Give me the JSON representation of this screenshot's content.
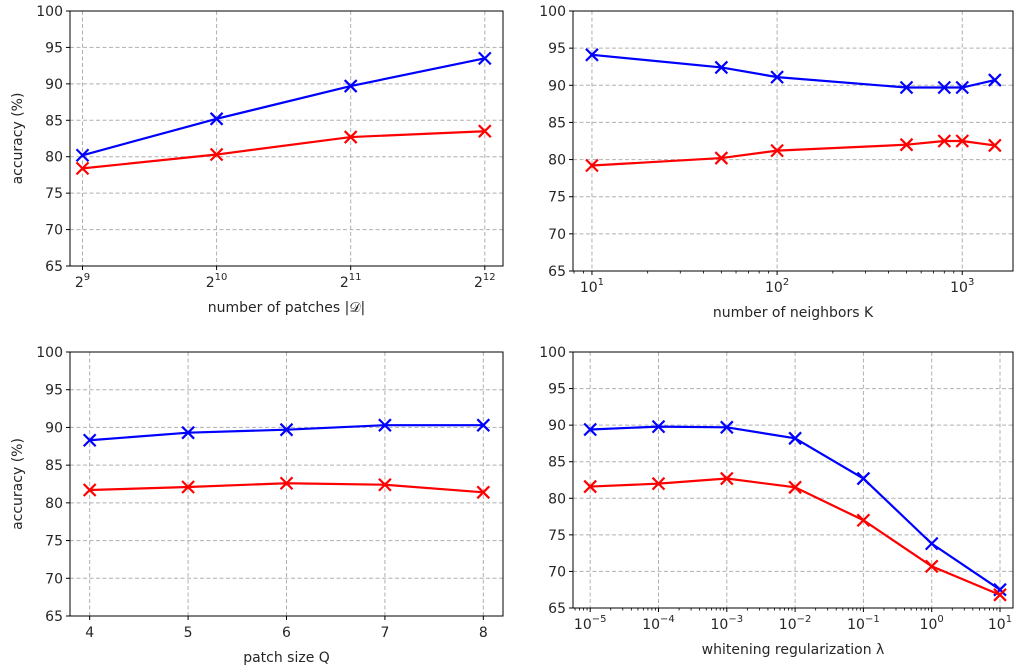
{
  "chart_data": [
    {
      "type": "line",
      "xscale": "log2",
      "x": [
        512,
        1024,
        2048,
        4096
      ],
      "xticks": [
        {
          "base": "2",
          "exp": "9"
        },
        {
          "base": "2",
          "exp": "10"
        },
        {
          "base": "2",
          "exp": "11"
        },
        {
          "base": "2",
          "exp": "12"
        }
      ],
      "xlabel": "number of patches |𝒟|",
      "ylabel": "accuracy (%)",
      "ylim": [
        65,
        100
      ],
      "yticks": [
        "65",
        "70",
        "75",
        "80",
        "85",
        "90",
        "95",
        "100"
      ],
      "grid": true,
      "series": [
        {
          "color": "#0000ff",
          "values": [
            80.2,
            85.2,
            89.7,
            93.5
          ]
        },
        {
          "color": "#ff0000",
          "values": [
            78.4,
            80.3,
            82.7,
            83.5
          ]
        }
      ]
    },
    {
      "type": "line",
      "xscale": "log10",
      "x": [
        10,
        50,
        100,
        500,
        800,
        1000,
        1500
      ],
      "xticks": [
        {
          "base": "10",
          "exp": "1"
        },
        {
          "base": "10",
          "exp": "2"
        },
        {
          "base": "10",
          "exp": "3"
        }
      ],
      "xlabel": "number of neighbors K",
      "ylabel": "",
      "ylim": [
        65,
        100
      ],
      "yticks": [
        "65",
        "70",
        "75",
        "80",
        "85",
        "90",
        "95",
        "100"
      ],
      "grid": true,
      "series": [
        {
          "color": "#0000ff",
          "values": [
            94.1,
            92.4,
            91.1,
            89.7,
            89.7,
            89.7,
            90.7
          ]
        },
        {
          "color": "#ff0000",
          "values": [
            79.2,
            80.2,
            81.2,
            82.0,
            82.5,
            82.5,
            81.9
          ]
        }
      ]
    },
    {
      "type": "line",
      "xscale": "linear",
      "x": [
        4,
        5,
        6,
        7,
        8
      ],
      "xlim": [
        3.8,
        8.2
      ],
      "xticks": [
        {
          "label": "4",
          "value": 4
        },
        {
          "label": "5",
          "value": 5
        },
        {
          "label": "6",
          "value": 6
        },
        {
          "label": "7",
          "value": 7
        },
        {
          "label": "8",
          "value": 8
        }
      ],
      "xlabel": "patch size Q",
      "ylabel": "accuracy (%)",
      "ylim": [
        65,
        100
      ],
      "yticks": [
        "65",
        "70",
        "75",
        "80",
        "85",
        "90",
        "95",
        "100"
      ],
      "grid": true,
      "series": [
        {
          "color": "#0000ff",
          "values": [
            88.3,
            89.3,
            89.7,
            90.3,
            90.3
          ]
        },
        {
          "color": "#ff0000",
          "values": [
            81.7,
            82.1,
            82.6,
            82.4,
            81.4
          ]
        }
      ]
    },
    {
      "type": "line",
      "xscale": "log10",
      "x": [
        1e-05,
        0.0001,
        0.001,
        0.01,
        0.1,
        1,
        10
      ],
      "xticks": [
        {
          "base": "10",
          "exp": "−5"
        },
        {
          "base": "10",
          "exp": "−4"
        },
        {
          "base": "10",
          "exp": "−3"
        },
        {
          "base": "10",
          "exp": "−2"
        },
        {
          "base": "10",
          "exp": "−1"
        },
        {
          "base": "10",
          "exp": "0"
        },
        {
          "base": "10",
          "exp": "1"
        }
      ],
      "xlabel": "whitening regularization λ",
      "ylabel": "",
      "ylim": [
        65,
        100
      ],
      "yticks": [
        "65",
        "70",
        "75",
        "80",
        "85",
        "90",
        "95",
        "100"
      ],
      "grid": true,
      "series": [
        {
          "color": "#0000ff",
          "values": [
            89.4,
            89.8,
            89.7,
            88.2,
            82.7,
            73.8,
            67.5
          ]
        },
        {
          "color": "#ff0000",
          "values": [
            81.6,
            82.0,
            82.7,
            81.5,
            77.0,
            70.7,
            66.8
          ]
        }
      ]
    }
  ]
}
